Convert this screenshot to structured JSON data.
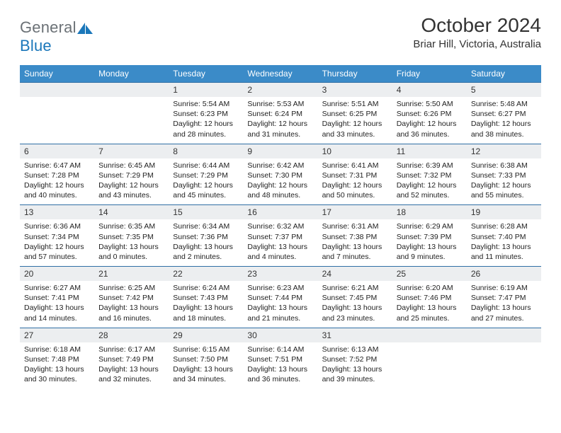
{
  "brand": {
    "part1": "General",
    "part2": "Blue"
  },
  "title": "October 2024",
  "location": "Briar Hill, Victoria, Australia",
  "colors": {
    "header_bg": "#3b8bc8",
    "header_text": "#ffffff",
    "daynum_bg": "#eceef0",
    "rule": "#2f6fa5",
    "logo_gray": "#6b7176",
    "logo_blue": "#1b77ba",
    "page_bg": "#ffffff",
    "body_text": "#222222"
  },
  "typography": {
    "title_fontsize": 28,
    "location_fontsize": 15,
    "header_fontsize": 12,
    "daynum_fontsize": 12,
    "body_fontsize": 10.5,
    "logo_fontsize": 22,
    "family": "Arial"
  },
  "layout": {
    "type": "table",
    "columns": 7,
    "rows": 5,
    "col_width_pct": 14.28
  },
  "weekdays": [
    "Sunday",
    "Monday",
    "Tuesday",
    "Wednesday",
    "Thursday",
    "Friday",
    "Saturday"
  ],
  "weeks": [
    [
      {
        "day": ""
      },
      {
        "day": ""
      },
      {
        "day": "1",
        "sunrise": "Sunrise: 5:54 AM",
        "sunset": "Sunset: 6:23 PM",
        "daylight": "Daylight: 12 hours and 28 minutes."
      },
      {
        "day": "2",
        "sunrise": "Sunrise: 5:53 AM",
        "sunset": "Sunset: 6:24 PM",
        "daylight": "Daylight: 12 hours and 31 minutes."
      },
      {
        "day": "3",
        "sunrise": "Sunrise: 5:51 AM",
        "sunset": "Sunset: 6:25 PM",
        "daylight": "Daylight: 12 hours and 33 minutes."
      },
      {
        "day": "4",
        "sunrise": "Sunrise: 5:50 AM",
        "sunset": "Sunset: 6:26 PM",
        "daylight": "Daylight: 12 hours and 36 minutes."
      },
      {
        "day": "5",
        "sunrise": "Sunrise: 5:48 AM",
        "sunset": "Sunset: 6:27 PM",
        "daylight": "Daylight: 12 hours and 38 minutes."
      }
    ],
    [
      {
        "day": "6",
        "sunrise": "Sunrise: 6:47 AM",
        "sunset": "Sunset: 7:28 PM",
        "daylight": "Daylight: 12 hours and 40 minutes."
      },
      {
        "day": "7",
        "sunrise": "Sunrise: 6:45 AM",
        "sunset": "Sunset: 7:29 PM",
        "daylight": "Daylight: 12 hours and 43 minutes."
      },
      {
        "day": "8",
        "sunrise": "Sunrise: 6:44 AM",
        "sunset": "Sunset: 7:29 PM",
        "daylight": "Daylight: 12 hours and 45 minutes."
      },
      {
        "day": "9",
        "sunrise": "Sunrise: 6:42 AM",
        "sunset": "Sunset: 7:30 PM",
        "daylight": "Daylight: 12 hours and 48 minutes."
      },
      {
        "day": "10",
        "sunrise": "Sunrise: 6:41 AM",
        "sunset": "Sunset: 7:31 PM",
        "daylight": "Daylight: 12 hours and 50 minutes."
      },
      {
        "day": "11",
        "sunrise": "Sunrise: 6:39 AM",
        "sunset": "Sunset: 7:32 PM",
        "daylight": "Daylight: 12 hours and 52 minutes."
      },
      {
        "day": "12",
        "sunrise": "Sunrise: 6:38 AM",
        "sunset": "Sunset: 7:33 PM",
        "daylight": "Daylight: 12 hours and 55 minutes."
      }
    ],
    [
      {
        "day": "13",
        "sunrise": "Sunrise: 6:36 AM",
        "sunset": "Sunset: 7:34 PM",
        "daylight": "Daylight: 12 hours and 57 minutes."
      },
      {
        "day": "14",
        "sunrise": "Sunrise: 6:35 AM",
        "sunset": "Sunset: 7:35 PM",
        "daylight": "Daylight: 13 hours and 0 minutes."
      },
      {
        "day": "15",
        "sunrise": "Sunrise: 6:34 AM",
        "sunset": "Sunset: 7:36 PM",
        "daylight": "Daylight: 13 hours and 2 minutes."
      },
      {
        "day": "16",
        "sunrise": "Sunrise: 6:32 AM",
        "sunset": "Sunset: 7:37 PM",
        "daylight": "Daylight: 13 hours and 4 minutes."
      },
      {
        "day": "17",
        "sunrise": "Sunrise: 6:31 AM",
        "sunset": "Sunset: 7:38 PM",
        "daylight": "Daylight: 13 hours and 7 minutes."
      },
      {
        "day": "18",
        "sunrise": "Sunrise: 6:29 AM",
        "sunset": "Sunset: 7:39 PM",
        "daylight": "Daylight: 13 hours and 9 minutes."
      },
      {
        "day": "19",
        "sunrise": "Sunrise: 6:28 AM",
        "sunset": "Sunset: 7:40 PM",
        "daylight": "Daylight: 13 hours and 11 minutes."
      }
    ],
    [
      {
        "day": "20",
        "sunrise": "Sunrise: 6:27 AM",
        "sunset": "Sunset: 7:41 PM",
        "daylight": "Daylight: 13 hours and 14 minutes."
      },
      {
        "day": "21",
        "sunrise": "Sunrise: 6:25 AM",
        "sunset": "Sunset: 7:42 PM",
        "daylight": "Daylight: 13 hours and 16 minutes."
      },
      {
        "day": "22",
        "sunrise": "Sunrise: 6:24 AM",
        "sunset": "Sunset: 7:43 PM",
        "daylight": "Daylight: 13 hours and 18 minutes."
      },
      {
        "day": "23",
        "sunrise": "Sunrise: 6:23 AM",
        "sunset": "Sunset: 7:44 PM",
        "daylight": "Daylight: 13 hours and 21 minutes."
      },
      {
        "day": "24",
        "sunrise": "Sunrise: 6:21 AM",
        "sunset": "Sunset: 7:45 PM",
        "daylight": "Daylight: 13 hours and 23 minutes."
      },
      {
        "day": "25",
        "sunrise": "Sunrise: 6:20 AM",
        "sunset": "Sunset: 7:46 PM",
        "daylight": "Daylight: 13 hours and 25 minutes."
      },
      {
        "day": "26",
        "sunrise": "Sunrise: 6:19 AM",
        "sunset": "Sunset: 7:47 PM",
        "daylight": "Daylight: 13 hours and 27 minutes."
      }
    ],
    [
      {
        "day": "27",
        "sunrise": "Sunrise: 6:18 AM",
        "sunset": "Sunset: 7:48 PM",
        "daylight": "Daylight: 13 hours and 30 minutes."
      },
      {
        "day": "28",
        "sunrise": "Sunrise: 6:17 AM",
        "sunset": "Sunset: 7:49 PM",
        "daylight": "Daylight: 13 hours and 32 minutes."
      },
      {
        "day": "29",
        "sunrise": "Sunrise: 6:15 AM",
        "sunset": "Sunset: 7:50 PM",
        "daylight": "Daylight: 13 hours and 34 minutes."
      },
      {
        "day": "30",
        "sunrise": "Sunrise: 6:14 AM",
        "sunset": "Sunset: 7:51 PM",
        "daylight": "Daylight: 13 hours and 36 minutes."
      },
      {
        "day": "31",
        "sunrise": "Sunrise: 6:13 AM",
        "sunset": "Sunset: 7:52 PM",
        "daylight": "Daylight: 13 hours and 39 minutes."
      },
      {
        "day": ""
      },
      {
        "day": ""
      }
    ]
  ]
}
